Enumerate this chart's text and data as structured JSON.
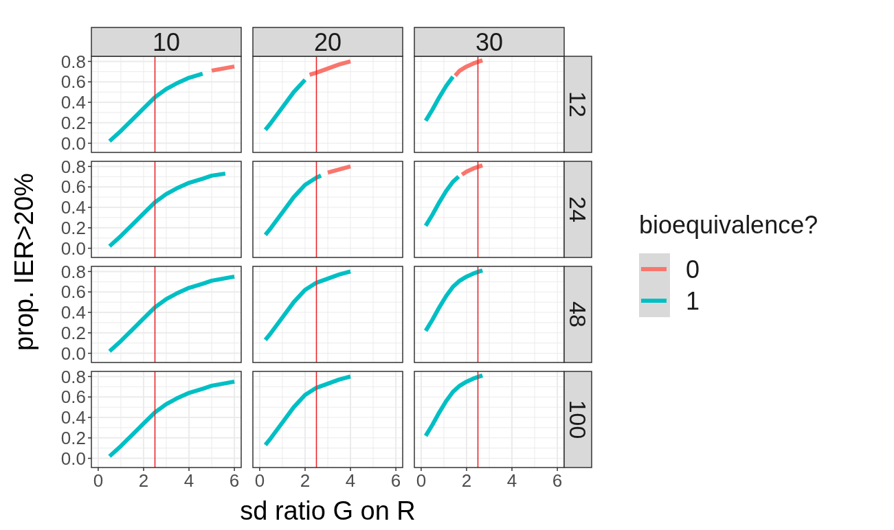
{
  "chart_data": [
    {
      "type": "line",
      "title": "10",
      "tick_labels": "y",
      "xlim": [
        -0.3,
        6.3
      ],
      "ylim": [
        -0.09,
        0.85
      ],
      "xticks": [
        {
          "value": 0,
          "label": null
        },
        {
          "value": 1,
          "label": null
        },
        {
          "value": 2,
          "label": null
        },
        {
          "value": 3,
          "label": null
        },
        {
          "value": 4,
          "label": null
        },
        {
          "value": 5,
          "label": null
        },
        {
          "value": 6,
          "label": null
        }
      ],
      "yticks": [
        {
          "value": 0,
          "label": "0.0"
        },
        {
          "value": 0.1,
          "label": null
        },
        {
          "value": 0.2,
          "label": "0.2"
        },
        {
          "value": 0.3,
          "label": null
        },
        {
          "value": 0.4,
          "label": "0.4"
        },
        {
          "value": 0.5,
          "label": null
        },
        {
          "value": 0.6,
          "label": "0.6"
        },
        {
          "value": 0.7,
          "label": null
        },
        {
          "value": 0.8,
          "label": "0.8"
        }
      ],
      "grid": true,
      "ref_lines": [
        {
          "axis": "x",
          "value": 2.5,
          "color": "#e8262a"
        }
      ],
      "series": [
        {
          "color": "#f8766d",
          "x": [
            5.0,
            5.5,
            6.0
          ],
          "values": [
            0.71,
            0.73,
            0.75
          ]
        },
        {
          "color": "#00bfc4",
          "x": [
            0.5,
            1,
            1.5,
            2,
            2.5,
            3,
            3.5,
            4,
            4.6
          ],
          "values": [
            0.02,
            0.12,
            0.23,
            0.34,
            0.45,
            0.53,
            0.59,
            0.64,
            0.68
          ]
        }
      ]
    },
    {
      "type": "line",
      "title": "20",
      "tick_labels": false,
      "xlim": [
        -0.3,
        6.3
      ],
      "ylim": [
        -0.09,
        0.85
      ],
      "xticks": [
        {
          "value": 0,
          "label": null
        },
        {
          "value": 1,
          "label": null
        },
        {
          "value": 2,
          "label": null
        },
        {
          "value": 3,
          "label": null
        },
        {
          "value": 4,
          "label": null
        },
        {
          "value": 5,
          "label": null
        },
        {
          "value": 6,
          "label": null
        }
      ],
      "yticks": [
        {
          "value": 0,
          "label": null
        },
        {
          "value": 0.1,
          "label": null
        },
        {
          "value": 0.2,
          "label": null
        },
        {
          "value": 0.3,
          "label": null
        },
        {
          "value": 0.4,
          "label": null
        },
        {
          "value": 0.5,
          "label": null
        },
        {
          "value": 0.6,
          "label": null
        },
        {
          "value": 0.7,
          "label": null
        },
        {
          "value": 0.8,
          "label": null
        }
      ],
      "grid": true,
      "ref_lines": [
        {
          "axis": "x",
          "value": 2.5,
          "color": "#e8262a"
        }
      ],
      "series": [
        {
          "color": "#f8766d",
          "x": [
            2.2,
            2.5,
            3,
            3.5,
            4
          ],
          "values": [
            0.67,
            0.69,
            0.73,
            0.77,
            0.8
          ]
        },
        {
          "color": "#00bfc4",
          "x": [
            0.25,
            0.5,
            1,
            1.5,
            2
          ],
          "values": [
            0.13,
            0.2,
            0.35,
            0.5,
            0.62
          ]
        }
      ]
    },
    {
      "type": "line",
      "title": "30",
      "y2label": "12",
      "tick_labels": false,
      "xlim": [
        -0.3,
        6.3
      ],
      "ylim": [
        -0.09,
        0.85
      ],
      "xticks": [
        {
          "value": 0,
          "label": null
        },
        {
          "value": 1,
          "label": null
        },
        {
          "value": 2,
          "label": null
        },
        {
          "value": 3,
          "label": null
        },
        {
          "value": 4,
          "label": null
        },
        {
          "value": 5,
          "label": null
        },
        {
          "value": 6,
          "label": null
        }
      ],
      "yticks": [
        {
          "value": 0,
          "label": null
        },
        {
          "value": 0.1,
          "label": null
        },
        {
          "value": 0.2,
          "label": null
        },
        {
          "value": 0.3,
          "label": null
        },
        {
          "value": 0.4,
          "label": null
        },
        {
          "value": 0.5,
          "label": null
        },
        {
          "value": 0.6,
          "label": null
        },
        {
          "value": 0.7,
          "label": null
        },
        {
          "value": 0.8,
          "label": null
        }
      ],
      "grid": true,
      "ref_lines": [
        {
          "axis": "x",
          "value": 2.5,
          "color": "#e8262a"
        }
      ],
      "series": [
        {
          "color": "#f8766d",
          "x": [
            1.5,
            1.7,
            2.0,
            2.3,
            2.7
          ],
          "values": [
            0.66,
            0.71,
            0.75,
            0.78,
            0.81
          ]
        },
        {
          "color": "#00bfc4",
          "x": [
            0.2,
            0.5,
            0.8,
            1.1,
            1.4
          ],
          "values": [
            0.22,
            0.33,
            0.45,
            0.56,
            0.65
          ]
        }
      ]
    },
    {
      "type": "line",
      "ylabel": "prop. IER>20%",
      "tick_labels": "y",
      "xlim": [
        -0.3,
        6.3
      ],
      "ylim": [
        -0.09,
        0.85
      ],
      "xticks": [
        {
          "value": 0,
          "label": null
        },
        {
          "value": 1,
          "label": null
        },
        {
          "value": 2,
          "label": null
        },
        {
          "value": 3,
          "label": null
        },
        {
          "value": 4,
          "label": null
        },
        {
          "value": 5,
          "label": null
        },
        {
          "value": 6,
          "label": null
        }
      ],
      "yticks": [
        {
          "value": 0,
          "label": "0.0"
        },
        {
          "value": 0.1,
          "label": null
        },
        {
          "value": 0.2,
          "label": "0.2"
        },
        {
          "value": 0.3,
          "label": null
        },
        {
          "value": 0.4,
          "label": "0.4"
        },
        {
          "value": 0.5,
          "label": null
        },
        {
          "value": 0.6,
          "label": "0.6"
        },
        {
          "value": 0.7,
          "label": null
        },
        {
          "value": 0.8,
          "label": "0.8"
        }
      ],
      "grid": true,
      "ref_lines": [
        {
          "axis": "x",
          "value": 2.5,
          "color": "#e8262a"
        }
      ],
      "series": [
        {
          "color": "#00bfc4",
          "x": [
            0.5,
            1,
            1.5,
            2,
            2.5,
            3,
            3.5,
            4,
            4.6,
            5,
            5.6
          ],
          "values": [
            0.02,
            0.12,
            0.23,
            0.34,
            0.45,
            0.53,
            0.59,
            0.64,
            0.68,
            0.71,
            0.73
          ]
        }
      ]
    },
    {
      "type": "line",
      "tick_labels": false,
      "xlim": [
        -0.3,
        6.3
      ],
      "ylim": [
        -0.09,
        0.85
      ],
      "xticks": [
        {
          "value": 0,
          "label": null
        },
        {
          "value": 1,
          "label": null
        },
        {
          "value": 2,
          "label": null
        },
        {
          "value": 3,
          "label": null
        },
        {
          "value": 4,
          "label": null
        },
        {
          "value": 5,
          "label": null
        },
        {
          "value": 6,
          "label": null
        }
      ],
      "yticks": [
        {
          "value": 0,
          "label": null
        },
        {
          "value": 0.1,
          "label": null
        },
        {
          "value": 0.2,
          "label": null
        },
        {
          "value": 0.3,
          "label": null
        },
        {
          "value": 0.4,
          "label": null
        },
        {
          "value": 0.5,
          "label": null
        },
        {
          "value": 0.6,
          "label": null
        },
        {
          "value": 0.7,
          "label": null
        },
        {
          "value": 0.8,
          "label": null
        }
      ],
      "grid": true,
      "ref_lines": [
        {
          "axis": "x",
          "value": 2.5,
          "color": "#e8262a"
        }
      ],
      "series": [
        {
          "color": "#f8766d",
          "x": [
            3,
            3.5,
            4
          ],
          "values": [
            0.74,
            0.77,
            0.8
          ]
        },
        {
          "color": "#00bfc4",
          "x": [
            0.25,
            0.5,
            1,
            1.5,
            2,
            2.5,
            2.7
          ],
          "values": [
            0.13,
            0.2,
            0.35,
            0.5,
            0.62,
            0.69,
            0.71
          ]
        }
      ]
    },
    {
      "type": "line",
      "y2label": "24",
      "legend": "right",
      "legend_title": "bioequivalence?",
      "tick_labels": false,
      "xlim": [
        -0.3,
        6.3
      ],
      "ylim": [
        -0.09,
        0.85
      ],
      "xticks": [
        {
          "value": 0,
          "label": null
        },
        {
          "value": 1,
          "label": null
        },
        {
          "value": 2,
          "label": null
        },
        {
          "value": 3,
          "label": null
        },
        {
          "value": 4,
          "label": null
        },
        {
          "value": 5,
          "label": null
        },
        {
          "value": 6,
          "label": null
        }
      ],
      "yticks": [
        {
          "value": 0,
          "label": null
        },
        {
          "value": 0.1,
          "label": null
        },
        {
          "value": 0.2,
          "label": null
        },
        {
          "value": 0.3,
          "label": null
        },
        {
          "value": 0.4,
          "label": null
        },
        {
          "value": 0.5,
          "label": null
        },
        {
          "value": 0.6,
          "label": null
        },
        {
          "value": 0.7,
          "label": null
        },
        {
          "value": 0.8,
          "label": null
        }
      ],
      "grid": true,
      "ref_lines": [
        {
          "axis": "x",
          "value": 2.5,
          "color": "#e8262a"
        }
      ],
      "series": [
        {
          "name": "0",
          "color": "#f8766d",
          "x": [
            1.8,
            2.0,
            2.3,
            2.7
          ],
          "values": [
            0.72,
            0.75,
            0.78,
            0.81
          ]
        },
        {
          "name": "1",
          "color": "#00bfc4",
          "x": [
            0.2,
            0.5,
            0.8,
            1.1,
            1.4,
            1.65
          ],
          "values": [
            0.22,
            0.33,
            0.45,
            0.56,
            0.65,
            0.7
          ]
        }
      ]
    },
    {
      "type": "line",
      "tick_labels": "y",
      "xlim": [
        -0.3,
        6.3
      ],
      "ylim": [
        -0.09,
        0.85
      ],
      "xticks": [
        {
          "value": 0,
          "label": null
        },
        {
          "value": 1,
          "label": null
        },
        {
          "value": 2,
          "label": null
        },
        {
          "value": 3,
          "label": null
        },
        {
          "value": 4,
          "label": null
        },
        {
          "value": 5,
          "label": null
        },
        {
          "value": 6,
          "label": null
        }
      ],
      "yticks": [
        {
          "value": 0,
          "label": "0.0"
        },
        {
          "value": 0.1,
          "label": null
        },
        {
          "value": 0.2,
          "label": "0.2"
        },
        {
          "value": 0.3,
          "label": null
        },
        {
          "value": 0.4,
          "label": "0.4"
        },
        {
          "value": 0.5,
          "label": null
        },
        {
          "value": 0.6,
          "label": "0.6"
        },
        {
          "value": 0.7,
          "label": null
        },
        {
          "value": 0.8,
          "label": "0.8"
        }
      ],
      "grid": true,
      "ref_lines": [
        {
          "axis": "x",
          "value": 2.5,
          "color": "#e8262a"
        }
      ],
      "series": [
        {
          "color": "#00bfc4",
          "x": [
            0.5,
            1,
            1.5,
            2,
            2.5,
            3,
            3.5,
            4,
            4.6,
            5,
            5.5,
            6
          ],
          "values": [
            0.02,
            0.12,
            0.23,
            0.34,
            0.45,
            0.53,
            0.59,
            0.64,
            0.68,
            0.71,
            0.73,
            0.75
          ]
        }
      ]
    },
    {
      "type": "line",
      "tick_labels": false,
      "xlim": [
        -0.3,
        6.3
      ],
      "ylim": [
        -0.09,
        0.85
      ],
      "xticks": [
        {
          "value": 0,
          "label": null
        },
        {
          "value": 1,
          "label": null
        },
        {
          "value": 2,
          "label": null
        },
        {
          "value": 3,
          "label": null
        },
        {
          "value": 4,
          "label": null
        },
        {
          "value": 5,
          "label": null
        },
        {
          "value": 6,
          "label": null
        }
      ],
      "yticks": [
        {
          "value": 0,
          "label": null
        },
        {
          "value": 0.1,
          "label": null
        },
        {
          "value": 0.2,
          "label": null
        },
        {
          "value": 0.3,
          "label": null
        },
        {
          "value": 0.4,
          "label": null
        },
        {
          "value": 0.5,
          "label": null
        },
        {
          "value": 0.6,
          "label": null
        },
        {
          "value": 0.7,
          "label": null
        },
        {
          "value": 0.8,
          "label": null
        }
      ],
      "grid": true,
      "ref_lines": [
        {
          "axis": "x",
          "value": 2.5,
          "color": "#e8262a"
        }
      ],
      "series": [
        {
          "color": "#00bfc4",
          "x": [
            0.25,
            0.5,
            1,
            1.5,
            2,
            2.5,
            3,
            3.5,
            4
          ],
          "values": [
            0.13,
            0.2,
            0.35,
            0.5,
            0.62,
            0.69,
            0.73,
            0.77,
            0.8
          ]
        }
      ]
    },
    {
      "type": "line",
      "y2label": "48",
      "tick_labels": false,
      "xlim": [
        -0.3,
        6.3
      ],
      "ylim": [
        -0.09,
        0.85
      ],
      "xticks": [
        {
          "value": 0,
          "label": null
        },
        {
          "value": 1,
          "label": null
        },
        {
          "value": 2,
          "label": null
        },
        {
          "value": 3,
          "label": null
        },
        {
          "value": 4,
          "label": null
        },
        {
          "value": 5,
          "label": null
        },
        {
          "value": 6,
          "label": null
        }
      ],
      "yticks": [
        {
          "value": 0,
          "label": null
        },
        {
          "value": 0.1,
          "label": null
        },
        {
          "value": 0.2,
          "label": null
        },
        {
          "value": 0.3,
          "label": null
        },
        {
          "value": 0.4,
          "label": null
        },
        {
          "value": 0.5,
          "label": null
        },
        {
          "value": 0.6,
          "label": null
        },
        {
          "value": 0.7,
          "label": null
        },
        {
          "value": 0.8,
          "label": null
        }
      ],
      "grid": true,
      "ref_lines": [
        {
          "axis": "x",
          "value": 2.5,
          "color": "#e8262a"
        }
      ],
      "series": [
        {
          "color": "#00bfc4",
          "x": [
            0.2,
            0.5,
            0.8,
            1.1,
            1.4,
            1.7,
            2.0,
            2.3,
            2.7
          ],
          "values": [
            0.22,
            0.33,
            0.45,
            0.56,
            0.65,
            0.71,
            0.75,
            0.78,
            0.81
          ]
        }
      ]
    },
    {
      "type": "line",
      "xlim": [
        -0.3,
        6.3
      ],
      "ylim": [
        -0.09,
        0.85
      ],
      "xticks": [
        0,
        {
          "value": 1,
          "label": null
        },
        2,
        {
          "value": 3,
          "label": null
        },
        4,
        {
          "value": 5,
          "label": null
        },
        6
      ],
      "yticks": [
        {
          "value": 0,
          "label": "0.0"
        },
        {
          "value": 0.1,
          "label": null
        },
        {
          "value": 0.2,
          "label": "0.2"
        },
        {
          "value": 0.3,
          "label": null
        },
        {
          "value": 0.4,
          "label": "0.4"
        },
        {
          "value": 0.5,
          "label": null
        },
        {
          "value": 0.6,
          "label": "0.6"
        },
        {
          "value": 0.7,
          "label": null
        },
        {
          "value": 0.8,
          "label": "0.8"
        }
      ],
      "grid": true,
      "ref_lines": [
        {
          "axis": "x",
          "value": 2.5,
          "color": "#e8262a"
        }
      ],
      "series": [
        {
          "color": "#00bfc4",
          "x": [
            0.5,
            1,
            1.5,
            2,
            2.5,
            3,
            3.5,
            4,
            4.6,
            5,
            5.5,
            6
          ],
          "values": [
            0.02,
            0.12,
            0.23,
            0.34,
            0.45,
            0.53,
            0.59,
            0.64,
            0.68,
            0.71,
            0.73,
            0.75
          ]
        }
      ]
    },
    {
      "type": "line",
      "xlabel": "sd ratio G on R",
      "tick_labels": "x",
      "xlim": [
        -0.3,
        6.3
      ],
      "ylim": [
        -0.09,
        0.85
      ],
      "xticks": [
        0,
        {
          "value": 1,
          "label": null
        },
        2,
        {
          "value": 3,
          "label": null
        },
        4,
        {
          "value": 5,
          "label": null
        },
        6
      ],
      "yticks": [
        {
          "value": 0,
          "label": null
        },
        {
          "value": 0.1,
          "label": null
        },
        {
          "value": 0.2,
          "label": null
        },
        {
          "value": 0.3,
          "label": null
        },
        {
          "value": 0.4,
          "label": null
        },
        {
          "value": 0.5,
          "label": null
        },
        {
          "value": 0.6,
          "label": null
        },
        {
          "value": 0.7,
          "label": null
        },
        {
          "value": 0.8,
          "label": null
        }
      ],
      "grid": true,
      "ref_lines": [
        {
          "axis": "x",
          "value": 2.5,
          "color": "#e8262a"
        }
      ],
      "series": [
        {
          "color": "#00bfc4",
          "x": [
            0.25,
            0.5,
            1,
            1.5,
            2,
            2.5,
            3,
            3.5,
            4
          ],
          "values": [
            0.13,
            0.2,
            0.35,
            0.5,
            0.62,
            0.69,
            0.73,
            0.77,
            0.8
          ]
        }
      ]
    },
    {
      "type": "line",
      "y2label": "100",
      "tick_labels": "x",
      "xlim": [
        -0.3,
        6.3
      ],
      "ylim": [
        -0.09,
        0.85
      ],
      "xticks": [
        0,
        {
          "value": 1,
          "label": null
        },
        2,
        {
          "value": 3,
          "label": null
        },
        4,
        {
          "value": 5,
          "label": null
        },
        6
      ],
      "yticks": [
        {
          "value": 0,
          "label": null
        },
        {
          "value": 0.1,
          "label": null
        },
        {
          "value": 0.2,
          "label": null
        },
        {
          "value": 0.3,
          "label": null
        },
        {
          "value": 0.4,
          "label": null
        },
        {
          "value": 0.5,
          "label": null
        },
        {
          "value": 0.6,
          "label": null
        },
        {
          "value": 0.7,
          "label": null
        },
        {
          "value": 0.8,
          "label": null
        }
      ],
      "grid": true,
      "ref_lines": [
        {
          "axis": "x",
          "value": 2.5,
          "color": "#e8262a"
        }
      ],
      "series": [
        {
          "color": "#00bfc4",
          "x": [
            0.2,
            0.5,
            0.8,
            1.1,
            1.4,
            1.7,
            2.0,
            2.3,
            2.7
          ],
          "values": [
            0.22,
            0.33,
            0.45,
            0.56,
            0.65,
            0.71,
            0.75,
            0.78,
            0.81
          ]
        }
      ]
    }
  ]
}
